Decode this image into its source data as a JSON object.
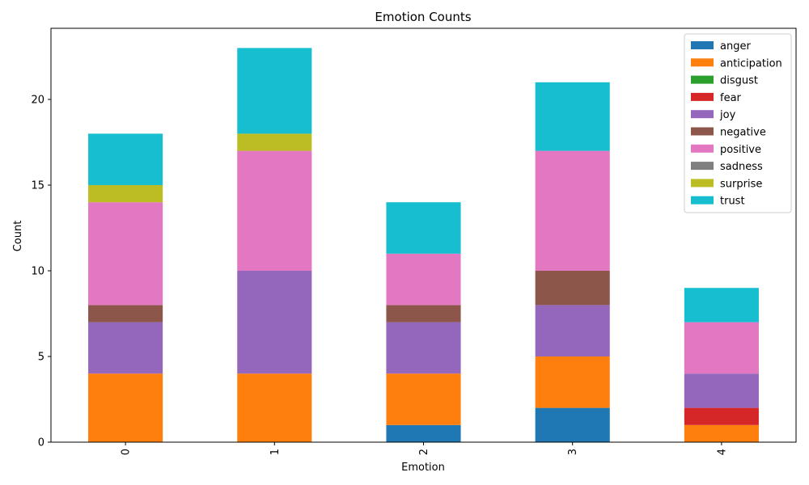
{
  "chart_data": {
    "type": "bar",
    "stacked": true,
    "title": "Emotion Counts",
    "xlabel": "Emotion",
    "ylabel": "Count",
    "categories": [
      "0",
      "1",
      "2",
      "3",
      "4"
    ],
    "ylim": [
      0,
      24.15
    ],
    "yticks": [
      0,
      5,
      10,
      15,
      20
    ],
    "grid": false,
    "legend_position": "top-right",
    "series": [
      {
        "name": "anger",
        "color": "#1f77b4",
        "values": [
          0,
          0,
          1,
          2,
          0
        ]
      },
      {
        "name": "anticipation",
        "color": "#ff7f0e",
        "values": [
          4,
          4,
          3,
          3,
          1
        ]
      },
      {
        "name": "disgust",
        "color": "#2ca02c",
        "values": [
          0,
          0,
          0,
          0,
          0
        ]
      },
      {
        "name": "fear",
        "color": "#d62728",
        "values": [
          0,
          0,
          0,
          0,
          1
        ]
      },
      {
        "name": "joy",
        "color": "#9467bd",
        "values": [
          3,
          6,
          3,
          3,
          2
        ]
      },
      {
        "name": "negative",
        "color": "#8c564b",
        "values": [
          1,
          0,
          1,
          2,
          0
        ]
      },
      {
        "name": "positive",
        "color": "#e377c2",
        "values": [
          6,
          7,
          3,
          7,
          3
        ]
      },
      {
        "name": "sadness",
        "color": "#7f7f7f",
        "values": [
          0,
          0,
          0,
          0,
          0
        ]
      },
      {
        "name": "surprise",
        "color": "#bcbd22",
        "values": [
          1,
          1,
          0,
          0,
          0
        ]
      },
      {
        "name": "trust",
        "color": "#17becf",
        "values": [
          3,
          5,
          3,
          4,
          2
        ]
      }
    ]
  }
}
